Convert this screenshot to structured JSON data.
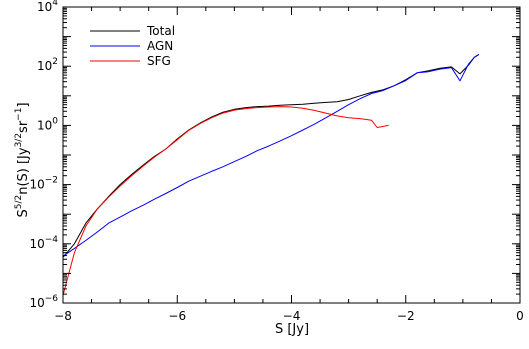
{
  "chart_data": {
    "type": "line",
    "xlabel": "S [Jy]",
    "ylabel": {
      "parts": [
        {
          "t": "S",
          "s": "n"
        },
        {
          "t": "5/2",
          "s": "sup"
        },
        {
          "t": "n(S) [Jy",
          "s": "n"
        },
        {
          "t": "3/2",
          "s": "sup"
        },
        {
          "t": "sr",
          "s": "n"
        },
        {
          "t": "−1",
          "s": "sup"
        },
        {
          "t": "]",
          "s": "n"
        }
      ]
    },
    "xlim": [
      -8,
      0
    ],
    "ylim_log10": [
      -6,
      4
    ],
    "yscale": "log",
    "x_ticks": [
      {
        "value": -8,
        "label": "−8"
      },
      {
        "value": -6,
        "label": "−6"
      },
      {
        "value": -4,
        "label": "−4"
      },
      {
        "value": -2,
        "label": "−2"
      },
      {
        "value": 0,
        "label": "0"
      }
    ],
    "y_ticks": [
      {
        "exp": -6,
        "base": "10",
        "sup": "−6"
      },
      {
        "exp": -4,
        "base": "10",
        "sup": "−4"
      },
      {
        "exp": -2,
        "base": "10",
        "sup": "−2"
      },
      {
        "exp": 0,
        "base": "10",
        "sup": "0"
      },
      {
        "exp": 2,
        "base": "10",
        "sup": "2"
      },
      {
        "exp": 4,
        "base": "10",
        "sup": "4"
      }
    ],
    "grid": false,
    "legend_position": "top-left",
    "series": [
      {
        "name": "Total",
        "color": "#000000",
        "x": [
          -8.0,
          -7.8,
          -7.6,
          -7.4,
          -7.2,
          -7.0,
          -6.8,
          -6.6,
          -6.4,
          -6.2,
          -6.0,
          -5.8,
          -5.6,
          -5.4,
          -5.2,
          -5.0,
          -4.8,
          -4.6,
          -4.4,
          -4.2,
          -4.0,
          -3.8,
          -3.6,
          -3.4,
          -3.2,
          -3.0,
          -2.8,
          -2.6,
          -2.4,
          -2.2,
          -2.0,
          -1.8,
          -1.6,
          -1.4,
          -1.2,
          -1.05,
          -0.9,
          -0.8,
          -0.72
        ],
        "y": [
          3.5e-05,
          0.0001,
          0.0005,
          0.0015,
          0.004,
          0.01,
          0.022,
          0.045,
          0.09,
          0.16,
          0.35,
          0.7,
          1.2,
          1.9,
          2.8,
          3.5,
          4.0,
          4.3,
          4.5,
          4.8,
          5.0,
          5.2,
          5.6,
          6.0,
          6.3,
          7.5,
          10,
          13,
          16,
          22,
          35,
          60,
          70,
          85,
          95,
          55,
          110,
          200,
          250
        ]
      },
      {
        "name": "AGN",
        "color": "#0000ff",
        "x": [
          -8.0,
          -7.8,
          -7.6,
          -7.4,
          -7.2,
          -7.0,
          -6.8,
          -6.6,
          -6.4,
          -6.2,
          -6.0,
          -5.8,
          -5.6,
          -5.4,
          -5.2,
          -5.0,
          -4.8,
          -4.6,
          -4.4,
          -4.2,
          -4.0,
          -3.8,
          -3.6,
          -3.4,
          -3.2,
          -3.0,
          -2.8,
          -2.6,
          -2.4,
          -2.2,
          -2.0,
          -1.8,
          -1.6,
          -1.4,
          -1.2,
          -1.05,
          -0.9,
          -0.8,
          -0.72
        ],
        "y": [
          3.8e-05,
          7e-05,
          0.00013,
          0.00025,
          0.0005,
          0.0008,
          0.0013,
          0.002,
          0.0032,
          0.005,
          0.008,
          0.013,
          0.019,
          0.028,
          0.04,
          0.06,
          0.09,
          0.14,
          0.2,
          0.3,
          0.45,
          0.7,
          1.1,
          1.8,
          3.0,
          5.0,
          8.0,
          12,
          15,
          22,
          33,
          60,
          65,
          80,
          90,
          32,
          120,
          200,
          250
        ]
      },
      {
        "name": "SFG",
        "color": "#ff0000",
        "x": [
          -8.0,
          -7.8,
          -7.6,
          -7.4,
          -7.2,
          -7.0,
          -6.8,
          -6.6,
          -6.4,
          -6.2,
          -6.0,
          -5.8,
          -5.6,
          -5.4,
          -5.2,
          -5.0,
          -4.8,
          -4.6,
          -4.4,
          -4.2,
          -4.0,
          -3.8,
          -3.6,
          -3.4,
          -3.2,
          -3.0,
          -2.8,
          -2.6,
          -2.5,
          -2.3
        ],
        "y": [
          1.8e-06,
          5e-05,
          0.0004,
          0.0015,
          0.0038,
          0.009,
          0.02,
          0.042,
          0.085,
          0.16,
          0.33,
          0.68,
          1.15,
          1.8,
          2.6,
          3.3,
          3.7,
          4.0,
          4.2,
          4.3,
          4.2,
          3.8,
          3.2,
          2.6,
          2.1,
          1.8,
          1.7,
          1.5,
          0.85,
          1.0
        ]
      }
    ]
  }
}
